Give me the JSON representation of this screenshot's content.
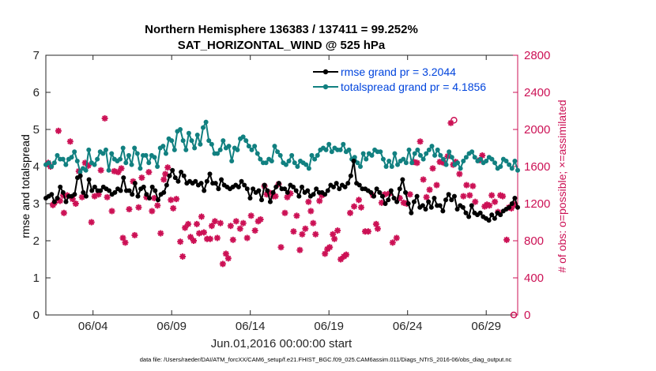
{
  "chart_data": {
    "type": "line",
    "title": [
      "Northern Hemisphere 136383 / 137411 = 99.252%",
      "SAT_HORIZONTAL_WIND @ 525 hPa"
    ],
    "xlabel": "Jun.01,2016 00:00:00 start",
    "ylabel_left": "rmse and totalspread",
    "ylabel_right": "# of obs: o=possible; ×=assimilated",
    "ylim_left": [
      0,
      7
    ],
    "ylim_right": [
      0,
      2800
    ],
    "xlim": [
      1,
      31
    ],
    "yticks_left": [
      "0",
      "1",
      "2",
      "3",
      "4",
      "5",
      "6",
      "7"
    ],
    "yticks_right": [
      "0",
      "400",
      "800",
      "1200",
      "1600",
      "2000",
      "2400",
      "2800"
    ],
    "xticks": [
      {
        "label": "06/04",
        "day": 4
      },
      {
        "label": "06/09",
        "day": 9
      },
      {
        "label": "06/14",
        "day": 14
      },
      {
        "label": "06/19",
        "day": 19
      },
      {
        "label": "06/24",
        "day": 24
      },
      {
        "label": "06/29",
        "day": 29
      }
    ],
    "footer": "data file: /Users/raeder/DAI/ATM_forcXX/CAM6_setup/f.e21.FHIST_BGC.f09_025.CAM6assim.011/Diags_NTrS_2016-06/obs_diag_output.nc",
    "colors": {
      "rmse": "#000000",
      "spread": "#118080",
      "obs": "#cc1155",
      "legend_text": "#0044dd"
    },
    "series": [
      {
        "name": "rmse grand pr = 3.2044",
        "key": "rmse",
        "values": [
          3.15,
          3.2,
          3.25,
          3.05,
          3.15,
          3.45,
          3.3,
          3.05,
          3.2,
          3.2,
          3.25,
          3.7,
          3.75,
          3.3,
          3.2,
          3.65,
          3.35,
          3.45,
          3.35,
          3.35,
          3.45,
          3.4,
          3.35,
          3.25,
          3.3,
          3.4,
          3.35,
          3.7,
          3.35,
          3.35,
          3.25,
          3.55,
          3.2,
          3.4,
          3.45,
          3.25,
          3.15,
          3.45,
          3.35,
          3.1,
          3.25,
          3.3,
          3.5,
          3.75,
          3.9,
          3.7,
          3.6,
          3.85,
          3.75,
          3.55,
          3.6,
          3.55,
          3.6,
          3.5,
          3.55,
          3.35,
          3.6,
          3.8,
          3.55,
          3.55,
          3.4,
          3.65,
          3.5,
          3.45,
          3.4,
          3.45,
          3.5,
          3.45,
          3.6,
          3.5,
          3.4,
          3.15,
          3.4,
          3.3,
          3.35,
          3.1,
          3.5,
          3.35,
          3.05,
          3.3,
          3.45,
          3.55,
          3.4,
          3.4,
          3.3,
          3.5,
          3.45,
          3.35,
          3.2,
          3.45,
          3.3,
          3.35,
          3.2,
          3.25,
          3.4,
          3.3,
          3.3,
          3.25,
          3.35,
          3.5,
          3.45,
          3.55,
          3.4,
          3.5,
          3.45,
          3.55,
          3.75,
          4.15,
          3.55,
          3.5,
          3.4,
          3.4,
          3.35,
          3.3,
          3.2,
          3.4,
          3.3,
          3.2,
          3.0,
          3.1,
          3.35,
          3.15,
          3.05,
          3.4,
          3.65,
          3.3,
          3.0,
          2.75,
          3.05,
          3.2,
          2.9,
          2.95,
          2.85,
          3.05,
          2.9,
          3.15,
          2.95,
          2.95,
          2.8,
          3.1,
          3.25,
          3.1,
          3.2,
          2.85,
          2.95,
          2.9,
          2.75,
          2.65,
          2.95,
          2.75,
          2.7,
          2.75,
          2.65,
          2.6,
          2.55,
          2.7,
          2.6,
          2.75,
          2.7,
          2.8,
          2.85,
          2.9,
          3.0,
          3.15,
          2.9
        ],
        "marker": "o"
      },
      {
        "name": "totalspread grand pr = 4.1856",
        "key": "spread",
        "values": [
          4.05,
          4.1,
          4.0,
          4.1,
          4.3,
          4.2,
          4.2,
          4.05,
          4.2,
          4.25,
          4.4,
          4.15,
          3.85,
          3.95,
          3.9,
          4.45,
          4.1,
          4.05,
          4.2,
          4.4,
          4.35,
          4.45,
          3.9,
          4.35,
          4.2,
          4.15,
          4.2,
          4.5,
          4.1,
          4.3,
          4.05,
          4.5,
          4.35,
          3.95,
          4.3,
          4.3,
          4.1,
          4.3,
          4.25,
          4.0,
          4.5,
          4.55,
          4.35,
          4.75,
          4.7,
          4.45,
          4.95,
          5.0,
          4.7,
          4.45,
          4.9,
          4.7,
          4.5,
          4.85,
          4.6,
          5.05,
          5.2,
          4.7,
          4.6,
          4.35,
          4.35,
          4.45,
          4.7,
          4.5,
          4.55,
          4.15,
          4.5,
          4.45,
          4.75,
          4.8,
          4.7,
          4.55,
          4.45,
          4.55,
          4.35,
          4.2,
          4.1,
          4.1,
          4.2,
          4.15,
          4.55,
          4.4,
          4.3,
          4.1,
          4.05,
          4.15,
          4.3,
          4.1,
          4.0,
          4.15,
          4.1,
          4.05,
          3.95,
          4.3,
          4.2,
          4.3,
          4.45,
          4.5,
          4.45,
          4.6,
          4.4,
          4.5,
          4.45,
          4.45,
          4.6,
          4.4,
          4.45,
          4.2,
          4.25,
          4.1,
          4.0,
          4.35,
          4.2,
          4.35,
          4.3,
          4.45,
          4.4,
          4.4,
          4.2,
          4.0,
          4.15,
          4.0,
          4.35,
          4.05,
          4.15,
          4.2,
          4.1,
          4.45,
          4.1,
          4.35,
          4.45,
          4.3,
          4.2,
          4.35,
          4.45,
          4.55,
          4.3,
          4.45,
          4.3,
          4.2,
          4.05,
          4.4,
          4.25,
          4.05,
          4.1,
          3.95,
          4.15,
          4.25,
          4.35,
          4.4,
          4.25,
          4.15,
          4.2,
          4.1,
          4.15,
          4.25,
          4.2,
          4.1,
          3.95,
          4.0,
          4.2,
          4.15,
          4.05,
          3.95,
          4.15,
          3.9
        ],
        "marker": "o"
      }
    ],
    "obs_assimilated": [
      [
        1.15,
        1640
      ],
      [
        1.2,
        1620
      ],
      [
        1.3,
        1600
      ],
      [
        1.45,
        1185
      ],
      [
        1.55,
        1210
      ],
      [
        1.8,
        1985
      ],
      [
        1.9,
        1230
      ],
      [
        2.1,
        1290
      ],
      [
        2.15,
        1100
      ],
      [
        2.35,
        1290
      ],
      [
        2.55,
        1870
      ],
      [
        2.7,
        1250
      ],
      [
        2.9,
        1200
      ],
      [
        3.1,
        1550
      ],
      [
        3.3,
        1270
      ],
      [
        3.5,
        1640
      ],
      [
        3.7,
        1610
      ],
      [
        3.9,
        1000
      ],
      [
        4.1,
        1280
      ],
      [
        4.35,
        1300
      ],
      [
        4.5,
        1560
      ],
      [
        4.75,
        2120
      ],
      [
        4.9,
        1270
      ],
      [
        5.2,
        1120
      ],
      [
        5.35,
        1550
      ],
      [
        5.6,
        1540
      ],
      [
        5.8,
        1580
      ],
      [
        5.9,
        830
      ],
      [
        6.05,
        780
      ],
      [
        6.3,
        1140
      ],
      [
        6.55,
        1440
      ],
      [
        6.65,
        860
      ],
      [
        6.9,
        1160
      ],
      [
        7.1,
        1480
      ],
      [
        7.4,
        1270
      ],
      [
        7.55,
        1540
      ],
      [
        7.75,
        1120
      ],
      [
        7.9,
        1260
      ],
      [
        8.1,
        1180
      ],
      [
        8.3,
        880
      ],
      [
        8.5,
        1460
      ],
      [
        8.6,
        1520
      ],
      [
        8.75,
        1590
      ],
      [
        8.95,
        1240
      ],
      [
        9.1,
        1150
      ],
      [
        9.3,
        1250
      ],
      [
        9.55,
        790
      ],
      [
        9.7,
        630
      ],
      [
        9.85,
        940
      ],
      [
        10.05,
        980
      ],
      [
        10.2,
        840
      ],
      [
        10.4,
        800
      ],
      [
        10.6,
        980
      ],
      [
        10.75,
        880
      ],
      [
        10.9,
        1060
      ],
      [
        11.05,
        890
      ],
      [
        11.25,
        820
      ],
      [
        11.45,
        820
      ],
      [
        11.55,
        960
      ],
      [
        11.75,
        1010
      ],
      [
        11.9,
        830
      ],
      [
        12.1,
        990
      ],
      [
        12.25,
        550
      ],
      [
        12.45,
        660
      ],
      [
        12.6,
        610
      ],
      [
        12.75,
        960
      ],
      [
        12.9,
        810
      ],
      [
        13.1,
        1010
      ],
      [
        13.35,
        930
      ],
      [
        13.55,
        990
      ],
      [
        13.8,
        830
      ],
      [
        14.05,
        1070
      ],
      [
        14.3,
        910
      ],
      [
        14.5,
        1010
      ],
      [
        14.65,
        1030
      ],
      [
        14.9,
        1390
      ],
      [
        15.05,
        1300
      ],
      [
        15.2,
        1320
      ],
      [
        15.45,
        1280
      ],
      [
        15.6,
        1280
      ],
      [
        15.8,
        1410
      ],
      [
        15.95,
        730
      ],
      [
        16.2,
        1100
      ],
      [
        16.35,
        1270
      ],
      [
        16.55,
        1310
      ],
      [
        16.75,
        900
      ],
      [
        16.95,
        1070
      ],
      [
        17.15,
        700
      ],
      [
        17.3,
        870
      ],
      [
        17.5,
        930
      ],
      [
        17.7,
        1220
      ],
      [
        17.85,
        1120
      ],
      [
        18.0,
        990
      ],
      [
        18.15,
        870
      ],
      [
        18.4,
        1230
      ],
      [
        18.55,
        1290
      ],
      [
        18.75,
        660
      ],
      [
        18.9,
        710
      ],
      [
        19.05,
        730
      ],
      [
        19.25,
        870
      ],
      [
        19.35,
        820
      ],
      [
        19.55,
        910
      ],
      [
        19.75,
        600
      ],
      [
        19.95,
        630
      ],
      [
        20.1,
        650
      ],
      [
        20.35,
        1100
      ],
      [
        20.6,
        1170
      ],
      [
        20.9,
        1240
      ],
      [
        21.05,
        1160
      ],
      [
        21.3,
        900
      ],
      [
        21.5,
        900
      ],
      [
        21.8,
        1290
      ],
      [
        22.0,
        980
      ],
      [
        22.1,
        930
      ],
      [
        22.35,
        1210
      ],
      [
        22.55,
        1300
      ],
      [
        22.85,
        1310
      ],
      [
        23.05,
        780
      ],
      [
        23.3,
        830
      ],
      [
        23.5,
        1260
      ],
      [
        23.75,
        1210
      ],
      [
        23.95,
        1200
      ],
      [
        24.15,
        1300
      ],
      [
        24.4,
        1650
      ],
      [
        24.6,
        1640
      ],
      [
        24.8,
        1870
      ],
      [
        25.0,
        1460
      ],
      [
        25.2,
        1270
      ],
      [
        25.4,
        1350
      ],
      [
        25.6,
        1580
      ],
      [
        25.85,
        1400
      ],
      [
        26.05,
        1650
      ],
      [
        26.3,
        1640
      ],
      [
        26.55,
        1710
      ],
      [
        26.75,
        2070
      ],
      [
        26.9,
        1620
      ],
      [
        27.05,
        1650
      ],
      [
        27.3,
        1520
      ],
      [
        27.55,
        1280
      ],
      [
        27.75,
        1400
      ],
      [
        27.95,
        1290
      ],
      [
        28.15,
        1390
      ],
      [
        28.3,
        1220
      ],
      [
        28.6,
        1670
      ],
      [
        28.75,
        1720
      ],
      [
        28.9,
        1170
      ],
      [
        29.05,
        1190
      ],
      [
        29.2,
        1180
      ],
      [
        29.35,
        1290
      ],
      [
        29.55,
        1220
      ],
      [
        29.75,
        1110
      ],
      [
        29.9,
        1290
      ],
      [
        30.05,
        1280
      ],
      [
        30.3,
        810
      ],
      [
        30.45,
        1160
      ],
      [
        30.6,
        1150
      ],
      [
        30.8,
        1190
      ]
    ],
    "obs_possible": [
      [
        26.95,
        2100
      ],
      [
        30.75,
        0
      ]
    ]
  }
}
